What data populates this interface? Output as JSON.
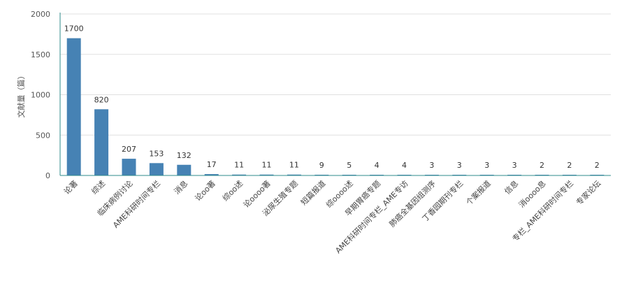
{
  "chart_data": {
    "type": "bar",
    "ylabel": "文献量（篇）",
    "ylim": [
      0,
      2000
    ],
    "yticks": [
      0,
      500,
      1000,
      1500,
      2000
    ],
    "grid": true,
    "legend": "none",
    "colors": {
      "bar": "#4682b4",
      "axis": "#2e8b8b",
      "grid": "#e0e0e0"
    },
    "categories": [
      "论著",
      "综述",
      "临床病例讨论",
      "AME科研时间专栏",
      "消息",
      "论oo著",
      "综oo述",
      "论oooo著",
      "泌尿生殖专题",
      "短篇报道",
      "综oooo述",
      "早期胃癌专题",
      "AME科研时间专栏_AME专访",
      "肺癌全基因组测序",
      "丁香园期刊专栏",
      "个案报道",
      "信息",
      "消oooo息",
      "专栏_AME科研时间专栏",
      "专家论坛"
    ],
    "values": [
      1700,
      820,
      207,
      153,
      132,
      17,
      11,
      11,
      11,
      9,
      5,
      4,
      4,
      3,
      3,
      3,
      3,
      2,
      2,
      2
    ]
  }
}
